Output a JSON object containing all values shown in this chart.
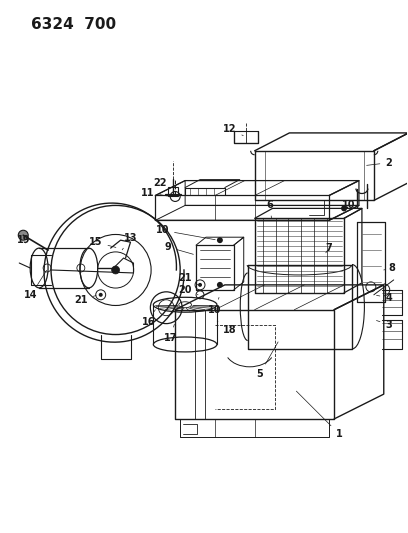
{
  "title": "6324 700",
  "bg_color": "#ffffff",
  "line_color": "#1a1a1a",
  "figsize": [
    4.08,
    5.33
  ],
  "dpi": 100
}
